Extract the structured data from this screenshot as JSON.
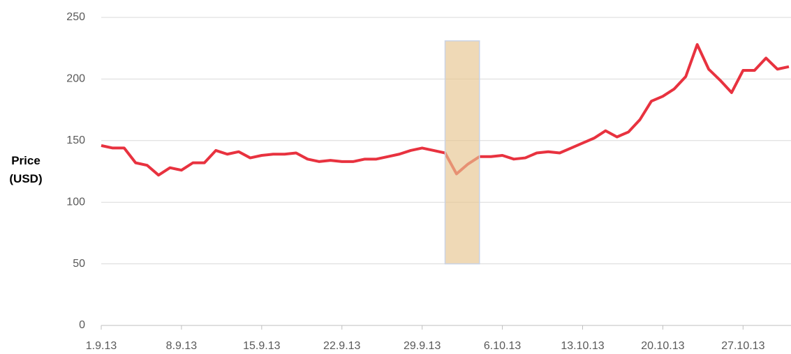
{
  "chart_data": {
    "type": "line",
    "ylabel": "Price (USD)",
    "x": [
      "2013-09-01",
      "2013-09-02",
      "2013-09-03",
      "2013-09-04",
      "2013-09-05",
      "2013-09-06",
      "2013-09-07",
      "2013-09-08",
      "2013-09-09",
      "2013-09-10",
      "2013-09-11",
      "2013-09-12",
      "2013-09-13",
      "2013-09-14",
      "2013-09-15",
      "2013-09-16",
      "2013-09-17",
      "2013-09-18",
      "2013-09-19",
      "2013-09-20",
      "2013-09-21",
      "2013-09-22",
      "2013-09-23",
      "2013-09-24",
      "2013-09-25",
      "2013-09-26",
      "2013-09-27",
      "2013-09-28",
      "2013-09-29",
      "2013-09-30",
      "2013-10-01",
      "2013-10-02",
      "2013-10-03",
      "2013-10-04",
      "2013-10-05",
      "2013-10-06",
      "2013-10-07",
      "2013-10-08",
      "2013-10-09",
      "2013-10-10",
      "2013-10-11",
      "2013-10-12",
      "2013-10-13",
      "2013-10-14",
      "2013-10-15",
      "2013-10-16",
      "2013-10-17",
      "2013-10-18",
      "2013-10-19",
      "2013-10-20",
      "2013-10-21",
      "2013-10-22",
      "2013-10-23",
      "2013-10-24",
      "2013-10-25",
      "2013-10-26",
      "2013-10-27",
      "2013-10-28",
      "2013-10-29",
      "2013-10-30",
      "2013-10-31"
    ],
    "series": [
      {
        "color": "#e8323f",
        "values": [
          146,
          144,
          144,
          132,
          130,
          122,
          128,
          126,
          132,
          132,
          142,
          139,
          141,
          136,
          138,
          139,
          139,
          140,
          135,
          133,
          134,
          133,
          133,
          135,
          135,
          137,
          139,
          142,
          144,
          142,
          140,
          123,
          131,
          137,
          137,
          138,
          135,
          136,
          140,
          141,
          140,
          144,
          148,
          152,
          158,
          153,
          157,
          167,
          182,
          186,
          192,
          202,
          228,
          208,
          199,
          189,
          207,
          207,
          217,
          208,
          210
        ]
      }
    ],
    "xlim": [
      "2013-09-01",
      "2013-10-31"
    ],
    "xticks": [
      {
        "value": "2013-09-01",
        "label": "1.9.13"
      },
      {
        "value": "2013-09-08",
        "label": "8.9.13"
      },
      {
        "value": "2013-09-15",
        "label": "15.9.13"
      },
      {
        "value": "2013-09-22",
        "label": "22.9.13"
      },
      {
        "value": "2013-09-29",
        "label": "29.9.13"
      },
      {
        "value": "2013-10-06",
        "label": "6.10.13"
      },
      {
        "value": "2013-10-13",
        "label": "13.10.13"
      },
      {
        "value": "2013-10-20",
        "label": "20.10.13"
      },
      {
        "value": "2013-10-27",
        "label": "27.10.13"
      }
    ],
    "ylim": [
      0,
      250
    ],
    "yticks": [
      0,
      50,
      100,
      150,
      200,
      250
    ],
    "grid": true,
    "highlight": {
      "x": [
        "2013-10-01",
        "2013-10-04"
      ],
      "y": [
        50,
        231
      ],
      "color": "#e6c58f"
    }
  }
}
